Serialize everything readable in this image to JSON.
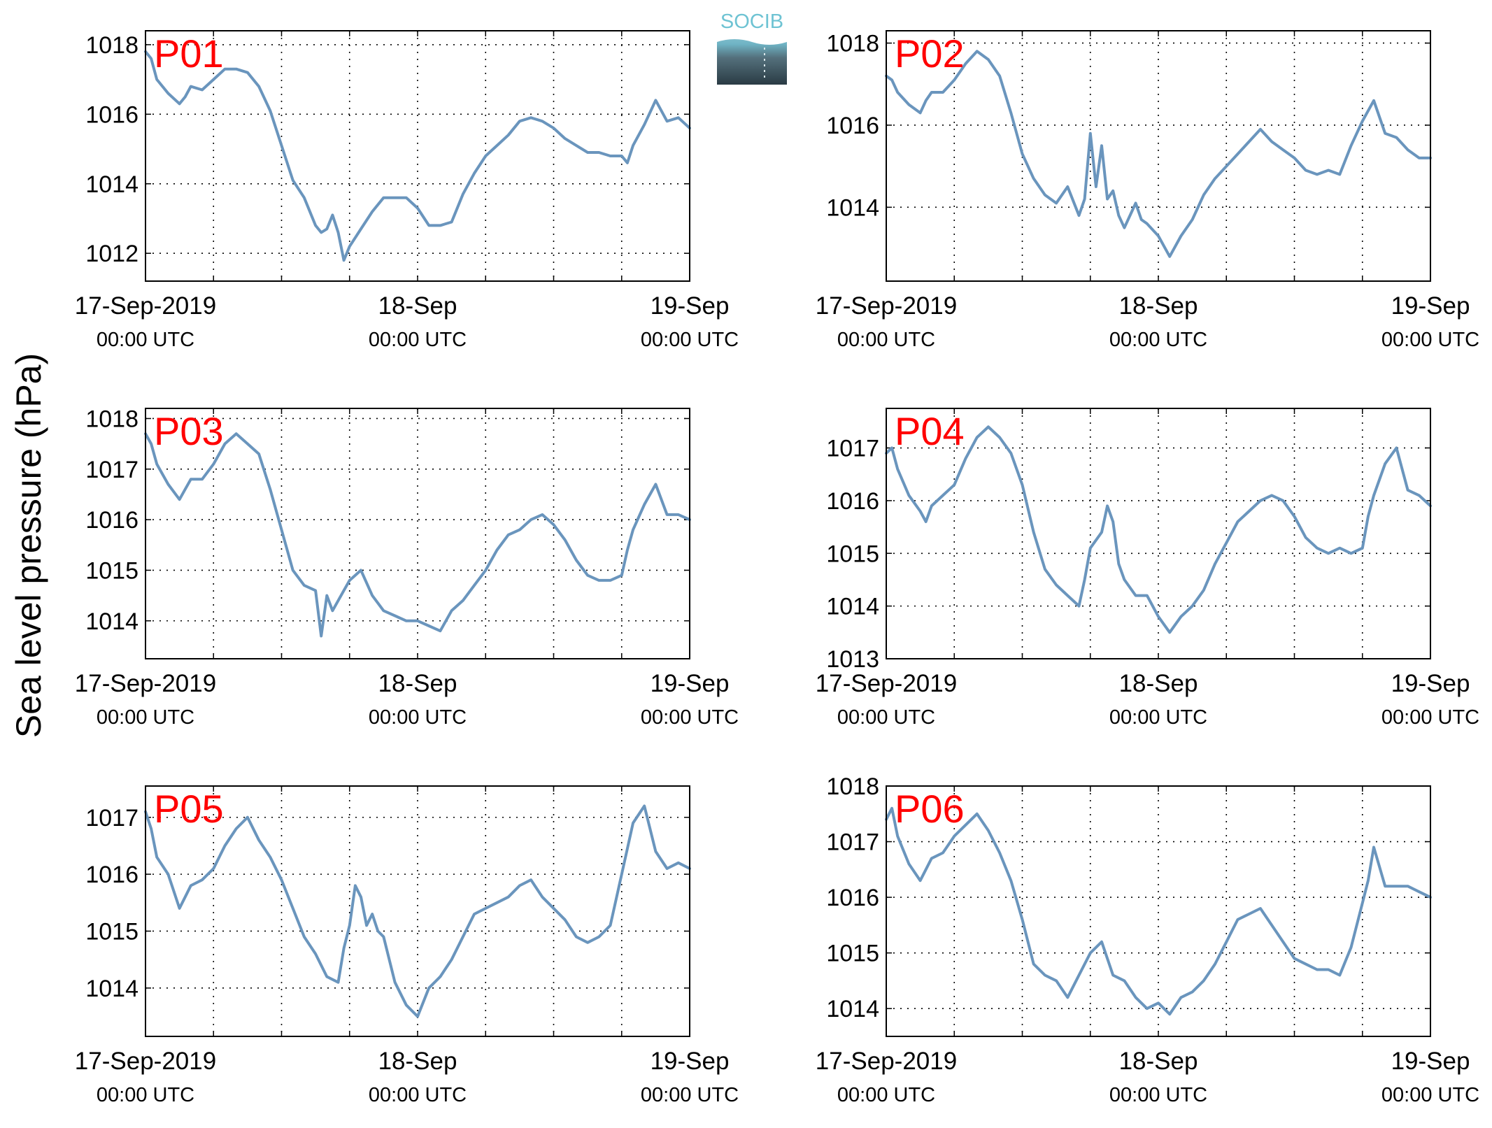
{
  "figure": {
    "ylabel": "Sea level pressure (hPa)",
    "logo_text": "SOCIB",
    "line_color": "#6a95bd",
    "station_label_color": "#ff0000",
    "x_ticks": [
      {
        "hour": 0,
        "line1": "17-Sep-2019",
        "line2": "00:00 UTC"
      },
      {
        "hour": 24,
        "line1": "18-Sep",
        "line2": "00:00 UTC"
      },
      {
        "hour": 48,
        "line1": "19-Sep",
        "line2": "00:00 UTC"
      }
    ],
    "x_grid_hours": [
      6,
      12,
      18,
      24,
      30,
      36,
      42
    ]
  },
  "chart_data": [
    {
      "type": "line",
      "station": "P01",
      "xlabel": "",
      "ylabel": "Sea level pressure (hPa)",
      "xlim": [
        0,
        48
      ],
      "ylim": [
        1011.2,
        1018.4
      ],
      "yticks": [
        1012,
        1014,
        1016,
        1018
      ],
      "grid": true,
      "series": [
        {
          "x": [
            0,
            0.5,
            1,
            2,
            3,
            3.5,
            4,
            5,
            6,
            7,
            8,
            9,
            10,
            11,
            12,
            13,
            14,
            15,
            15.5,
            16,
            16.5,
            17,
            17.5,
            18,
            19,
            20,
            21,
            22,
            23,
            24,
            25,
            26,
            27,
            28,
            29,
            30,
            31,
            32,
            33,
            34,
            35,
            36,
            37,
            38,
            39,
            40,
            41,
            42,
            42.5,
            43,
            44,
            45,
            46,
            47,
            48
          ],
          "y": [
            1017.8,
            1017.6,
            1017.0,
            1016.6,
            1016.3,
            1016.5,
            1016.8,
            1016.7,
            1017.0,
            1017.3,
            1017.3,
            1017.2,
            1016.8,
            1016.1,
            1015.1,
            1014.1,
            1013.6,
            1012.8,
            1012.6,
            1012.7,
            1013.1,
            1012.6,
            1011.8,
            1012.2,
            1012.7,
            1013.2,
            1013.6,
            1013.6,
            1013.6,
            1013.3,
            1012.8,
            1012.8,
            1012.9,
            1013.7,
            1014.3,
            1014.8,
            1015.1,
            1015.4,
            1015.8,
            1015.9,
            1015.8,
            1015.6,
            1015.3,
            1015.1,
            1014.9,
            1014.9,
            1014.8,
            1014.8,
            1014.6,
            1015.1,
            1015.7,
            1016.4,
            1015.8,
            1015.9,
            1015.6
          ]
        }
      ]
    },
    {
      "type": "line",
      "station": "P02",
      "xlabel": "",
      "ylabel": "Sea level pressure (hPa)",
      "xlim": [
        0,
        48
      ],
      "ylim": [
        1012.2,
        1018.3
      ],
      "yticks": [
        1014,
        1016,
        1018
      ],
      "grid": true,
      "series": [
        {
          "x": [
            0,
            0.5,
            1,
            2,
            3,
            3.5,
            4,
            5,
            6,
            7,
            8,
            9,
            10,
            11,
            12,
            13,
            14,
            15,
            16,
            17,
            17.5,
            18,
            18.5,
            19,
            19.5,
            20,
            20.5,
            21,
            22,
            22.5,
            23,
            24,
            25,
            26,
            27,
            28,
            29,
            30,
            31,
            32,
            33,
            34,
            35,
            36,
            37,
            38,
            39,
            40,
            41,
            42,
            43,
            44,
            45,
            46,
            47,
            48
          ],
          "y": [
            1017.2,
            1017.1,
            1016.8,
            1016.5,
            1016.3,
            1016.6,
            1016.8,
            1016.8,
            1017.1,
            1017.5,
            1017.8,
            1017.6,
            1017.2,
            1016.3,
            1015.3,
            1014.7,
            1014.3,
            1014.1,
            1014.5,
            1013.8,
            1014.2,
            1015.8,
            1014.5,
            1015.5,
            1014.2,
            1014.4,
            1013.8,
            1013.5,
            1014.1,
            1013.7,
            1013.6,
            1013.3,
            1012.8,
            1013.3,
            1013.7,
            1014.3,
            1014.7,
            1015.0,
            1015.3,
            1015.6,
            1015.9,
            1015.6,
            1015.4,
            1015.2,
            1014.9,
            1014.8,
            1014.9,
            1014.8,
            1015.5,
            1016.1,
            1016.6,
            1015.8,
            1015.7,
            1015.4,
            1015.2,
            1015.2
          ]
        }
      ]
    },
    {
      "type": "line",
      "station": "P03",
      "xlabel": "",
      "ylabel": "Sea level pressure (hPa)",
      "xlim": [
        0,
        48
      ],
      "ylim": [
        1013.25,
        1018.2
      ],
      "yticks": [
        1014,
        1015,
        1016,
        1017,
        1018
      ],
      "grid": true,
      "series": [
        {
          "x": [
            0,
            0.5,
            1,
            2,
            3,
            3.5,
            4,
            5,
            6,
            7,
            8,
            9,
            10,
            11,
            12,
            13,
            14,
            15,
            15.5,
            16,
            16.5,
            17,
            17.5,
            18,
            19,
            20,
            21,
            22,
            23,
            24,
            25,
            26,
            27,
            28,
            29,
            30,
            31,
            32,
            33,
            34,
            35,
            36,
            37,
            38,
            39,
            40,
            41,
            42,
            42.5,
            43,
            44,
            45,
            46,
            47,
            48
          ],
          "y": [
            1017.7,
            1017.5,
            1017.1,
            1016.7,
            1016.4,
            1016.6,
            1016.8,
            1016.8,
            1017.1,
            1017.5,
            1017.7,
            1017.5,
            1017.3,
            1016.6,
            1015.8,
            1015.0,
            1014.7,
            1014.6,
            1013.7,
            1014.5,
            1014.2,
            1014.4,
            1014.6,
            1014.8,
            1015.0,
            1014.5,
            1014.2,
            1014.1,
            1014.0,
            1014.0,
            1013.9,
            1013.8,
            1014.2,
            1014.4,
            1014.7,
            1015.0,
            1015.4,
            1015.7,
            1015.8,
            1016.0,
            1016.1,
            1015.9,
            1015.6,
            1015.2,
            1014.9,
            1014.8,
            1014.8,
            1014.9,
            1015.4,
            1015.8,
            1016.3,
            1016.7,
            1016.1,
            1016.1,
            1016.0
          ]
        }
      ]
    },
    {
      "type": "line",
      "station": "P04",
      "xlabel": "",
      "ylabel": "Sea level pressure (hPa)",
      "xlim": [
        0,
        48
      ],
      "ylim": [
        1013.0,
        1017.75
      ],
      "yticks": [
        1013,
        1014,
        1015,
        1016,
        1017
      ],
      "grid": true,
      "series": [
        {
          "x": [
            0,
            0.5,
            1,
            2,
            3,
            3.5,
            4,
            5,
            6,
            7,
            8,
            9,
            10,
            11,
            12,
            13,
            14,
            15,
            16,
            17,
            17.5,
            18,
            19,
            19.5,
            20,
            20.5,
            21,
            22,
            23,
            24,
            25,
            26,
            27,
            28,
            29,
            30,
            31,
            32,
            33,
            34,
            35,
            36,
            37,
            38,
            39,
            40,
            41,
            42,
            42.5,
            43,
            44,
            45,
            46,
            47,
            48
          ],
          "y": [
            1016.9,
            1017.0,
            1016.6,
            1016.1,
            1015.8,
            1015.6,
            1015.9,
            1016.1,
            1016.3,
            1016.8,
            1017.2,
            1017.4,
            1017.2,
            1016.9,
            1016.3,
            1015.4,
            1014.7,
            1014.4,
            1014.2,
            1014.0,
            1014.5,
            1015.1,
            1015.4,
            1015.9,
            1015.6,
            1014.8,
            1014.5,
            1014.2,
            1014.2,
            1013.8,
            1013.5,
            1013.8,
            1014.0,
            1014.3,
            1014.8,
            1015.2,
            1015.6,
            1015.8,
            1016.0,
            1016.1,
            1016.0,
            1015.7,
            1015.3,
            1015.1,
            1015.0,
            1015.1,
            1015.0,
            1015.1,
            1015.7,
            1016.1,
            1016.7,
            1017.0,
            1016.2,
            1016.1,
            1015.9
          ]
        }
      ]
    },
    {
      "type": "line",
      "station": "P05",
      "xlabel": "",
      "ylabel": "Sea level pressure (hPa)",
      "xlim": [
        0,
        48
      ],
      "ylim": [
        1013.15,
        1017.55
      ],
      "yticks": [
        1014,
        1015,
        1016,
        1017
      ],
      "grid": true,
      "series": [
        {
          "x": [
            0,
            0.5,
            1,
            2,
            3,
            3.5,
            4,
            5,
            6,
            7,
            8,
            9,
            10,
            11,
            12,
            13,
            14,
            15,
            16,
            17,
            17.5,
            18,
            18.5,
            19,
            19.5,
            20,
            20.5,
            21,
            22,
            23,
            24,
            25,
            26,
            27,
            28,
            29,
            30,
            31,
            32,
            33,
            34,
            35,
            36,
            37,
            38,
            39,
            40,
            41,
            42,
            43,
            44,
            45,
            46,
            47,
            48
          ],
          "y": [
            1017.1,
            1016.8,
            1016.3,
            1016.0,
            1015.4,
            1015.6,
            1015.8,
            1015.9,
            1016.1,
            1016.5,
            1016.8,
            1017.0,
            1016.6,
            1016.3,
            1015.9,
            1015.4,
            1014.9,
            1014.6,
            1014.2,
            1014.1,
            1014.7,
            1015.1,
            1015.8,
            1015.6,
            1015.1,
            1015.3,
            1015.0,
            1014.9,
            1014.1,
            1013.7,
            1013.5,
            1014.0,
            1014.2,
            1014.5,
            1014.9,
            1015.3,
            1015.4,
            1015.5,
            1015.6,
            1015.8,
            1015.9,
            1015.6,
            1015.4,
            1015.2,
            1014.9,
            1014.8,
            1014.9,
            1015.1,
            1016.0,
            1016.9,
            1017.2,
            1016.4,
            1016.1,
            1016.2,
            1016.1
          ]
        }
      ]
    },
    {
      "type": "line",
      "station": "P06",
      "xlabel": "",
      "ylabel": "Sea level pressure (hPa)",
      "xlim": [
        0,
        48
      ],
      "ylim": [
        1013.5,
        1018.0
      ],
      "yticks": [
        1014,
        1015,
        1016,
        1017,
        1018
      ],
      "grid": true,
      "series": [
        {
          "x": [
            0,
            0.5,
            1,
            2,
            3,
            3.5,
            4,
            5,
            6,
            7,
            8,
            9,
            10,
            11,
            12,
            13,
            14,
            15,
            16,
            17,
            18,
            19,
            19.5,
            20,
            21,
            22,
            23,
            24,
            25,
            26,
            27,
            28,
            29,
            30,
            31,
            32,
            33,
            34,
            35,
            36,
            37,
            38,
            39,
            40,
            41,
            42,
            42.5,
            43,
            44,
            45,
            46,
            47,
            48
          ],
          "y": [
            1017.4,
            1017.6,
            1017.1,
            1016.6,
            1016.3,
            1016.5,
            1016.7,
            1016.8,
            1017.1,
            1017.3,
            1017.5,
            1017.2,
            1016.8,
            1016.3,
            1015.6,
            1014.8,
            1014.6,
            1014.5,
            1014.2,
            1014.6,
            1015.0,
            1015.2,
            1014.9,
            1014.6,
            1014.5,
            1014.2,
            1014.0,
            1014.1,
            1013.9,
            1014.2,
            1014.3,
            1014.5,
            1014.8,
            1015.2,
            1015.6,
            1015.7,
            1015.8,
            1015.5,
            1015.2,
            1014.9,
            1014.8,
            1014.7,
            1014.7,
            1014.6,
            1015.1,
            1015.9,
            1016.3,
            1016.9,
            1016.2,
            1016.2,
            1016.2,
            1016.1,
            1016.0
          ]
        }
      ]
    }
  ]
}
